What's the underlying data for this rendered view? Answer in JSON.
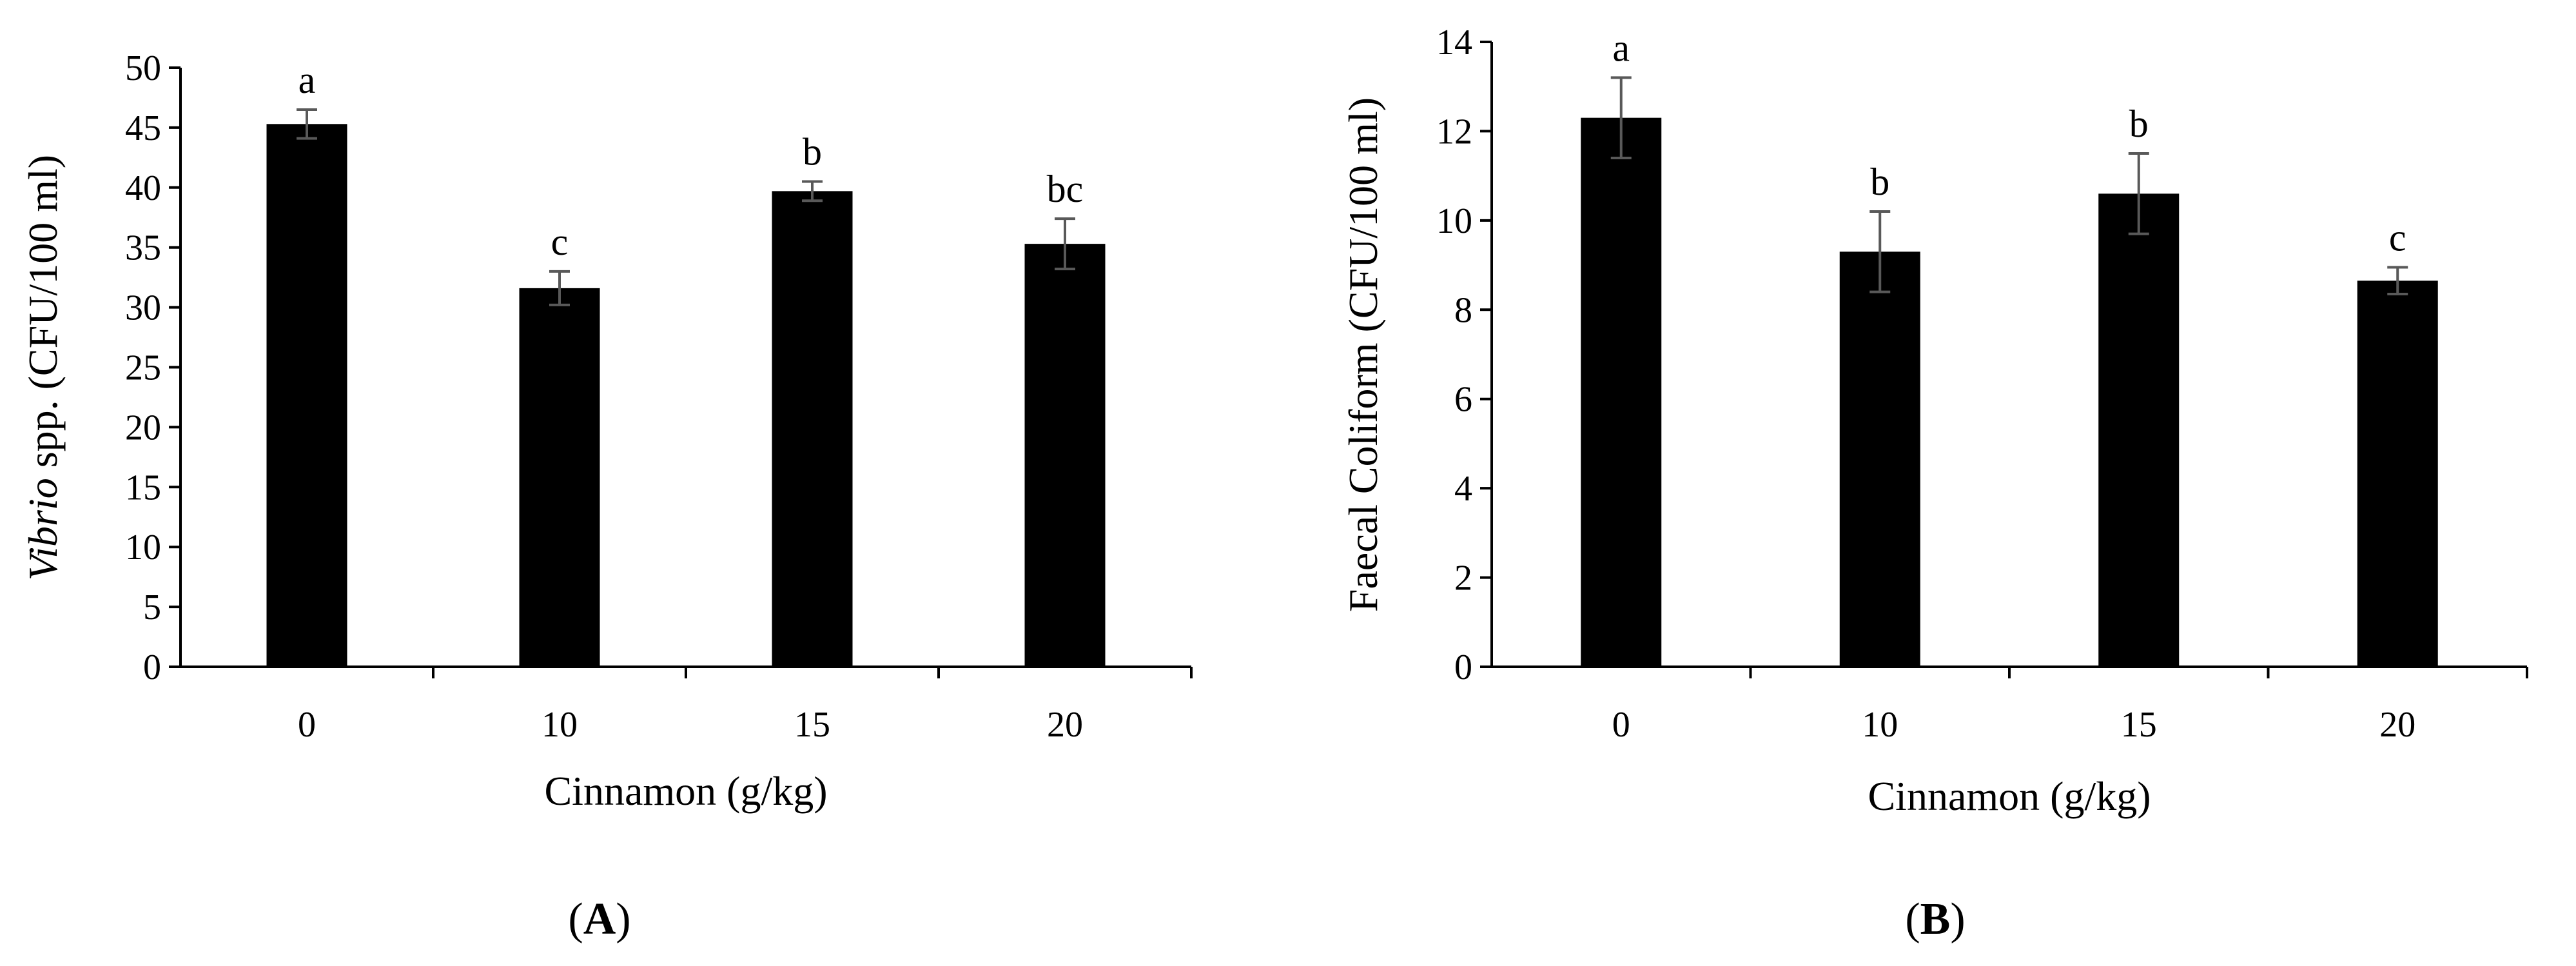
{
  "chart_data": [
    {
      "type": "bar",
      "panel_label_open": "(",
      "panel_label_letter": "A",
      "panel_label_close": ")",
      "categories": [
        "0",
        "10",
        "15",
        "20"
      ],
      "values": [
        45.3,
        31.6,
        39.7,
        35.3
      ],
      "errors": [
        1.2,
        1.4,
        0.8,
        2.1
      ],
      "significance": [
        "a",
        "c",
        "b",
        "bc"
      ],
      "xlabel": "Cinnamon (g/kg)",
      "ylabel_italic": "Vibrio",
      "ylabel_rest": " spp. (CFU/100 ml)",
      "ylim": [
        0,
        50
      ],
      "yticks": [
        "0",
        "5",
        "10",
        "15",
        "20",
        "25",
        "30",
        "35",
        "40",
        "45",
        "50"
      ],
      "bar_color": "#000000",
      "error_bar_color": "#595959",
      "grid": false,
      "legend": "none"
    },
    {
      "type": "bar",
      "panel_label_open": "(",
      "panel_label_letter": "B",
      "panel_label_close": ")",
      "categories": [
        "0",
        "10",
        "15",
        "20"
      ],
      "values": [
        12.3,
        9.3,
        10.6,
        8.65
      ],
      "errors": [
        0.9,
        0.9,
        0.9,
        0.3
      ],
      "significance": [
        "a",
        "b",
        "b",
        "c"
      ],
      "xlabel": "Cinnamon (g/kg)",
      "ylabel_italic": "",
      "ylabel_rest": "Faecal Coliform (CFU/100 ml)",
      "ylim": [
        0,
        14
      ],
      "yticks": [
        "0",
        "2",
        "4",
        "6",
        "8",
        "10",
        "12",
        "14"
      ],
      "bar_color": "#000000",
      "error_bar_color": "#595959",
      "grid": false,
      "legend": "none"
    }
  ]
}
